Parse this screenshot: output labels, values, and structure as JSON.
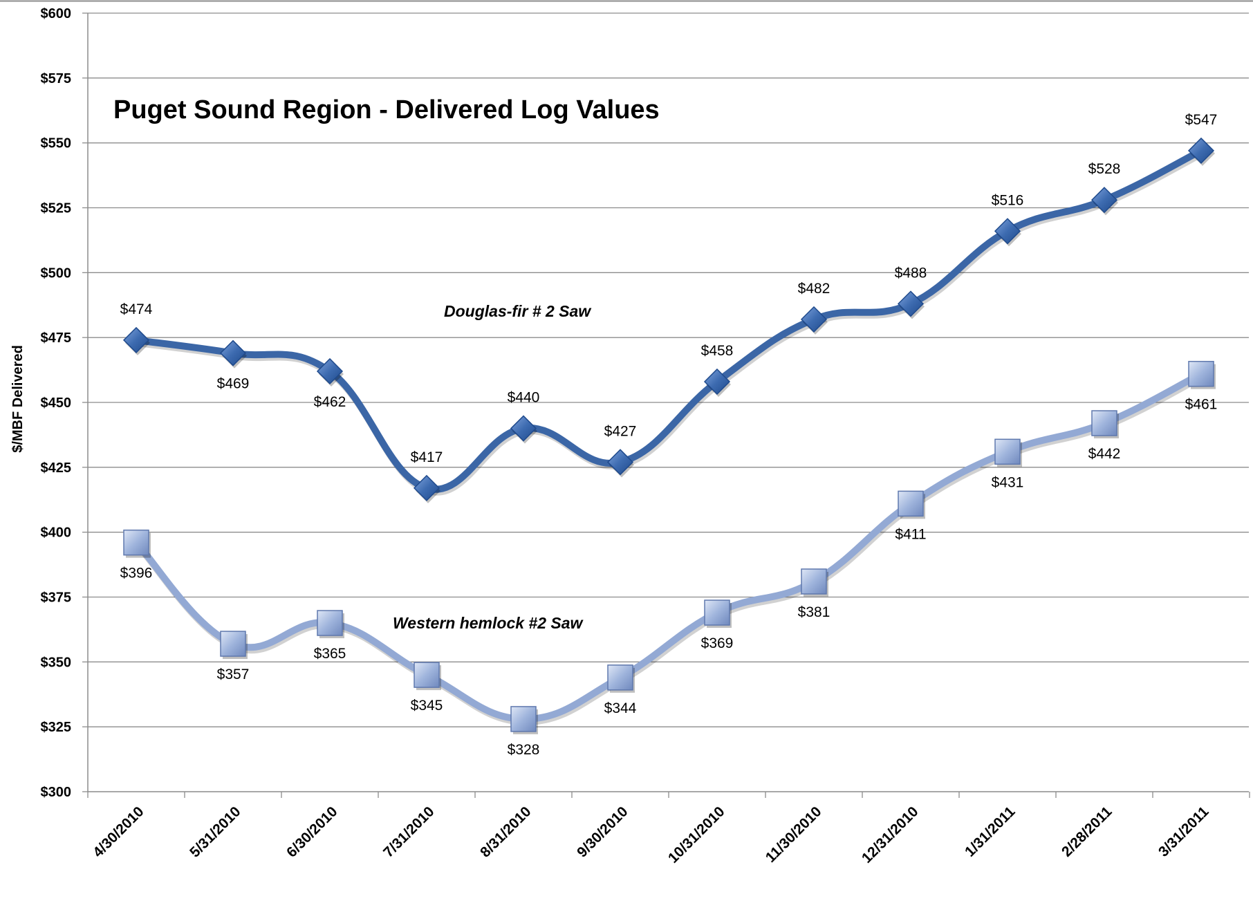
{
  "chart_data": {
    "type": "line",
    "title": "Puget Sound Region - Delivered Log Values",
    "xlabel": "",
    "ylabel": "$/MBF Delivered",
    "ylim": [
      300,
      600
    ],
    "y_ticks": [
      "$300",
      "$325",
      "$350",
      "$375",
      "$400",
      "$425",
      "$450",
      "$475",
      "$500",
      "$525",
      "$550",
      "$575",
      "$600"
    ],
    "categories": [
      "4/30/2010",
      "5/31/2010",
      "6/30/2010",
      "7/31/2010",
      "8/31/2010",
      "9/30/2010",
      "10/31/2010",
      "11/30/2010",
      "12/31/2010",
      "1/31/2011",
      "2/28/2011",
      "3/31/2011"
    ],
    "grid": true,
    "series": [
      {
        "name": "Douglas-fir # 2 Saw",
        "marker": "diamond",
        "color": "#3b66a6",
        "values": [
          474,
          469,
          462,
          417,
          440,
          427,
          458,
          482,
          488,
          516,
          528,
          547
        ],
        "labels": [
          "$474",
          "$469",
          "$462",
          "$417",
          "$440",
          "$427",
          "$458",
          "$482",
          "$488",
          "$516",
          "$528",
          "$547"
        ]
      },
      {
        "name": "Western hemlock #2 Saw",
        "marker": "square",
        "color": "#93a9d4",
        "values": [
          396,
          357,
          365,
          345,
          328,
          344,
          369,
          381,
          411,
          431,
          442,
          461
        ],
        "labels": [
          "$396",
          "$357",
          "$365",
          "$345",
          "$328",
          "$344",
          "$369",
          "$381",
          "$411",
          "$431",
          "$442",
          "$461"
        ]
      }
    ]
  }
}
